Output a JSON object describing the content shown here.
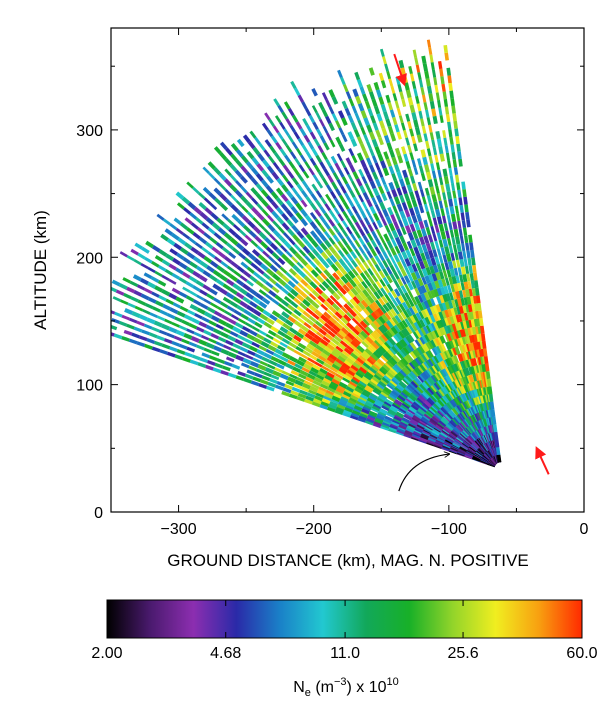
{
  "chart_data": {
    "type": "heatmap",
    "title": "",
    "xlabel": "GROUND DISTANCE (km), MAG. N. POSITIVE",
    "ylabel": "ALTITUDE (km)",
    "xlim": [
      -350,
      0
    ],
    "ylim": [
      0,
      380
    ],
    "x_ticks": [
      -300,
      -200,
      -100,
      0
    ],
    "x_tick_labels": [
      "−300",
      "−200",
      "−100",
      "0"
    ],
    "y_ticks": [
      0,
      100,
      200,
      300
    ],
    "y_tick_labels": [
      "0",
      "100",
      "200",
      "300"
    ],
    "grid": false,
    "scan": {
      "origin_x_km": -62,
      "origin_y_km": 35,
      "beam_elevation_start_deg": 20,
      "beam_elevation_end_deg": 83,
      "beam_range_max_km": [
        305,
        330
      ],
      "units": "Ground distance / altitude in km",
      "features": [
        {
          "name": "low_ne_base",
          "altitude_km": [
            40,
            100
          ],
          "ne_e10": 2.5
        },
        {
          "name": "ne_peak_left",
          "x_km": -180,
          "altitude_km": 140,
          "ne_e10": 45
        },
        {
          "name": "ne_peak_right",
          "x_km": -65,
          "altitude_km": 140,
          "ne_e10": 45
        },
        {
          "name": "upper_region",
          "altitude_km": [
            250,
            350
          ],
          "ne_e10": 30
        }
      ]
    },
    "annotations": [
      {
        "type": "arrow",
        "color": "#ff1a1a",
        "tip_x_km": -133,
        "tip_y_km": 336
      },
      {
        "type": "arrow",
        "color": "#ff1a1a",
        "tip_x_km": -35,
        "tip_y_km": 50
      },
      {
        "type": "curved-arrow",
        "color": "#000000",
        "tip_x_km": -100,
        "tip_y_km": 40
      }
    ],
    "colorbar": {
      "label_text": "N",
      "label_subscript": "e",
      "label_mid": " (m",
      "label_sup1": "−3",
      "label_tail": ") x 10",
      "label_sup2": "10",
      "scale": "log",
      "min": 2.0,
      "max": 60.0,
      "tick_labels": [
        "2.00",
        "4.68",
        "11.0",
        "25.6",
        "60.0"
      ],
      "tick_values": [
        2.0,
        4.68,
        11.0,
        25.6,
        60.0
      ],
      "colors": [
        "#000000",
        "#4a1a6e",
        "#8c2eb0",
        "#2a2aa8",
        "#1a80c8",
        "#22c8d0",
        "#12a85a",
        "#18b028",
        "#92d42a",
        "#f0ee20",
        "#f8a010",
        "#ff2a00"
      ]
    }
  }
}
